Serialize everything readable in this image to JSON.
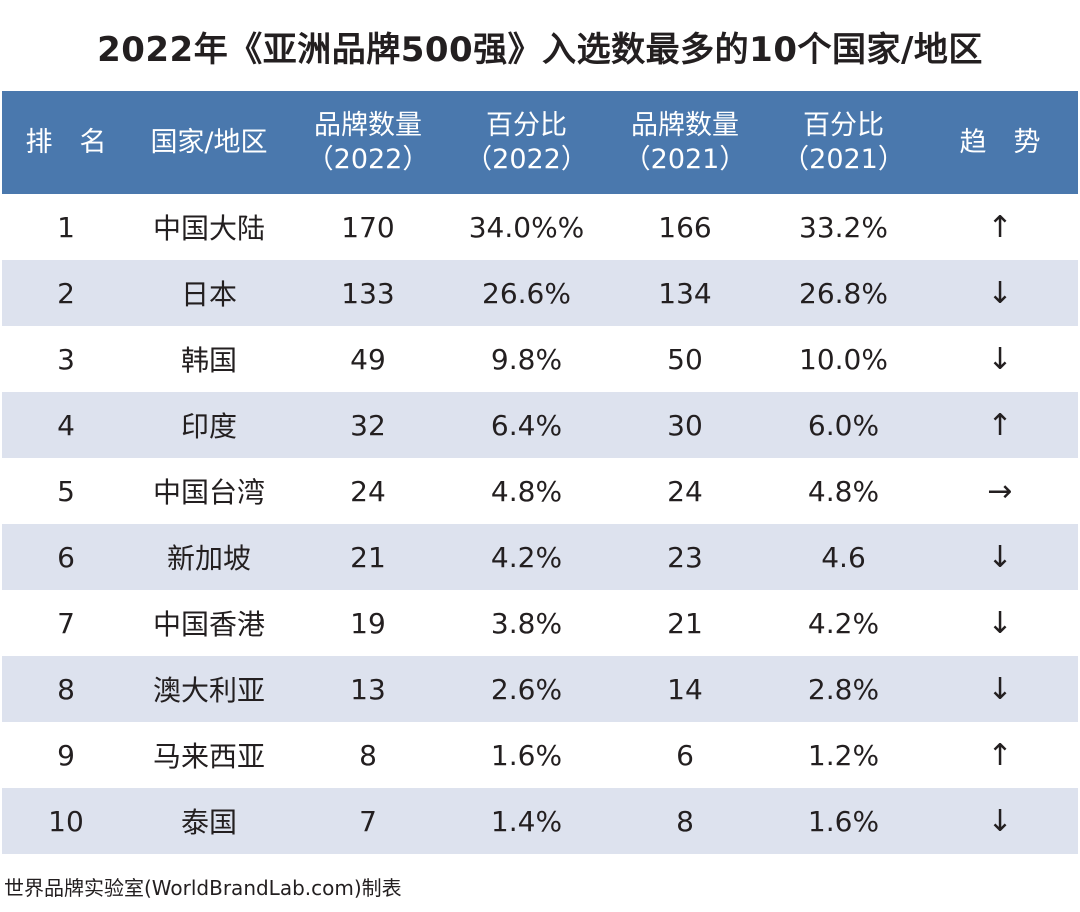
{
  "title": "2022年《亚洲品牌500强》入选数最多的10个国家/地区",
  "columns": [
    {
      "line1": "排　名",
      "line2": ""
    },
    {
      "line1": "国家/地区",
      "line2": ""
    },
    {
      "line1": "品牌数量",
      "line2": "（2022）"
    },
    {
      "line1": "百分比",
      "line2": "（2022）"
    },
    {
      "line1": "品牌数量",
      "line2": "（2021）"
    },
    {
      "line1": "百分比",
      "line2": "（2021）"
    },
    {
      "line1": "趋　势",
      "line2": ""
    }
  ],
  "rows": [
    {
      "rank": "1",
      "region": "中国大陆",
      "count_2022": "170",
      "pct_2022": "34.0%%",
      "count_2021": "166",
      "pct_2021": "33.2%",
      "trend": "↑"
    },
    {
      "rank": "2",
      "region": "日本",
      "count_2022": "133",
      "pct_2022": "26.6%",
      "count_2021": "134",
      "pct_2021": "26.8%",
      "trend": "↓"
    },
    {
      "rank": "3",
      "region": "韩国",
      "count_2022": "49",
      "pct_2022": "9.8%",
      "count_2021": "50",
      "pct_2021": "10.0%",
      "trend": "↓"
    },
    {
      "rank": "4",
      "region": "印度",
      "count_2022": "32",
      "pct_2022": "6.4%",
      "count_2021": "30",
      "pct_2021": "6.0%",
      "trend": "↑"
    },
    {
      "rank": "5",
      "region": "中国台湾",
      "count_2022": "24",
      "pct_2022": "4.8%",
      "count_2021": "24",
      "pct_2021": "4.8%",
      "trend": "→"
    },
    {
      "rank": "6",
      "region": "新加坡",
      "count_2022": "21",
      "pct_2022": "4.2%",
      "count_2021": "23",
      "pct_2021": "4.6",
      "trend": "↓"
    },
    {
      "rank": "7",
      "region": "中国香港",
      "count_2022": "19",
      "pct_2022": "3.8%",
      "count_2021": "21",
      "pct_2021": "4.2%",
      "trend": "↓"
    },
    {
      "rank": "8",
      "region": "澳大利亚",
      "count_2022": "13",
      "pct_2022": "2.6%",
      "count_2021": "14",
      "pct_2021": "2.8%",
      "trend": "↓"
    },
    {
      "rank": "9",
      "region": "马来西亚",
      "count_2022": "8",
      "pct_2022": "1.6%",
      "count_2021": "6",
      "pct_2021": "1.2%",
      "trend": "↑"
    },
    {
      "rank": "10",
      "region": "泰国",
      "count_2022": "7",
      "pct_2022": "1.4%",
      "count_2021": "8",
      "pct_2021": "1.6%",
      "trend": "↓"
    }
  ],
  "footer": "世界品牌实验室(WorldBrandLab.com)制表",
  "colors": {
    "header_bg": "#4a78ad",
    "stripe_bg": "#dde2ee"
  }
}
